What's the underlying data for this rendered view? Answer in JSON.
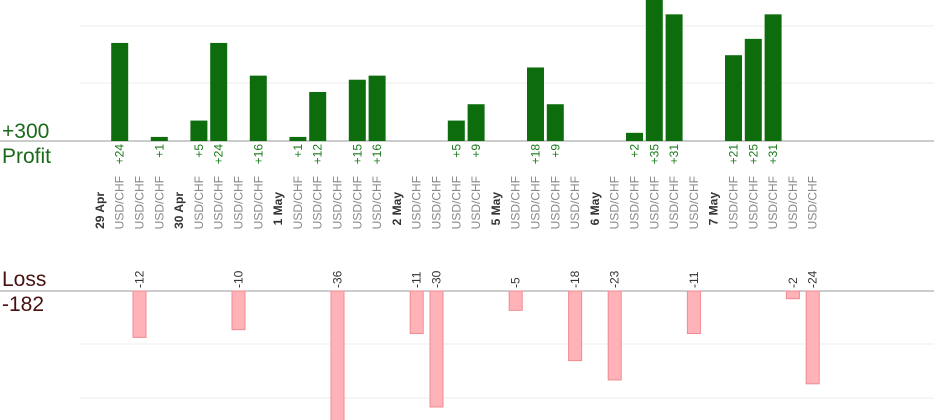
{
  "chart_data": {
    "type": "bar",
    "profit_label": "Profit",
    "profit_total": "+300",
    "loss_label": "Loss",
    "loss_total": "-182",
    "gain_color": "#0d6d0d",
    "loss_color": "#ffb3b8",
    "gain_scale_max": 35,
    "loss_scale_max": 30,
    "slots": [
      {
        "type": "date",
        "label": "29 Apr"
      },
      {
        "type": "trade",
        "pair": "USD/CHF",
        "value": 24
      },
      {
        "type": "trade",
        "pair": "USD/CHF",
        "value": -12
      },
      {
        "type": "trade",
        "pair": "USD/CHF",
        "value": 1
      },
      {
        "type": "date",
        "label": "30 Apr"
      },
      {
        "type": "trade",
        "pair": "USD/CHF",
        "value": 5
      },
      {
        "type": "trade",
        "pair": "USD/CHF",
        "value": 24
      },
      {
        "type": "trade",
        "pair": "USD/CHF",
        "value": -10
      },
      {
        "type": "trade",
        "pair": "USD/CHF",
        "value": 16
      },
      {
        "type": "date",
        "label": "1 May"
      },
      {
        "type": "trade",
        "pair": "USD/CHF",
        "value": 1
      },
      {
        "type": "trade",
        "pair": "USD/CHF",
        "value": 12
      },
      {
        "type": "trade",
        "pair": "USD/CHF",
        "value": -36
      },
      {
        "type": "trade",
        "pair": "USD/CHF",
        "value": 15
      },
      {
        "type": "trade",
        "pair": "USD/CHF",
        "value": 16
      },
      {
        "type": "date",
        "label": "2 May"
      },
      {
        "type": "trade",
        "pair": "USD/CHF",
        "value": -11
      },
      {
        "type": "trade",
        "pair": "USD/CHF",
        "value": -30
      },
      {
        "type": "trade",
        "pair": "USD/CHF",
        "value": 5
      },
      {
        "type": "trade",
        "pair": "USD/CHF",
        "value": 9
      },
      {
        "type": "date",
        "label": "5 May"
      },
      {
        "type": "trade",
        "pair": "USD/CHF",
        "value": -5
      },
      {
        "type": "trade",
        "pair": "USD/CHF",
        "value": 18
      },
      {
        "type": "trade",
        "pair": "USD/CHF",
        "value": 9
      },
      {
        "type": "trade",
        "pair": "USD/CHF",
        "value": -18
      },
      {
        "type": "date",
        "label": "6 May"
      },
      {
        "type": "trade",
        "pair": "USD/CHF",
        "value": -23
      },
      {
        "type": "trade",
        "pair": "USD/CHF",
        "value": 2
      },
      {
        "type": "trade",
        "pair": "USD/CHF",
        "value": 35
      },
      {
        "type": "trade",
        "pair": "USD/CHF",
        "value": 31
      },
      {
        "type": "trade",
        "pair": "USD/CHF",
        "value": -11
      },
      {
        "type": "date",
        "label": "7 May"
      },
      {
        "type": "trade",
        "pair": "USD/CHF",
        "value": 21
      },
      {
        "type": "trade",
        "pair": "USD/CHF",
        "value": 25
      },
      {
        "type": "trade",
        "pair": "USD/CHF",
        "value": 31
      },
      {
        "type": "trade",
        "pair": "USD/CHF",
        "value": -2
      },
      {
        "type": "trade",
        "pair": "USD/CHF",
        "value": -24
      }
    ]
  }
}
